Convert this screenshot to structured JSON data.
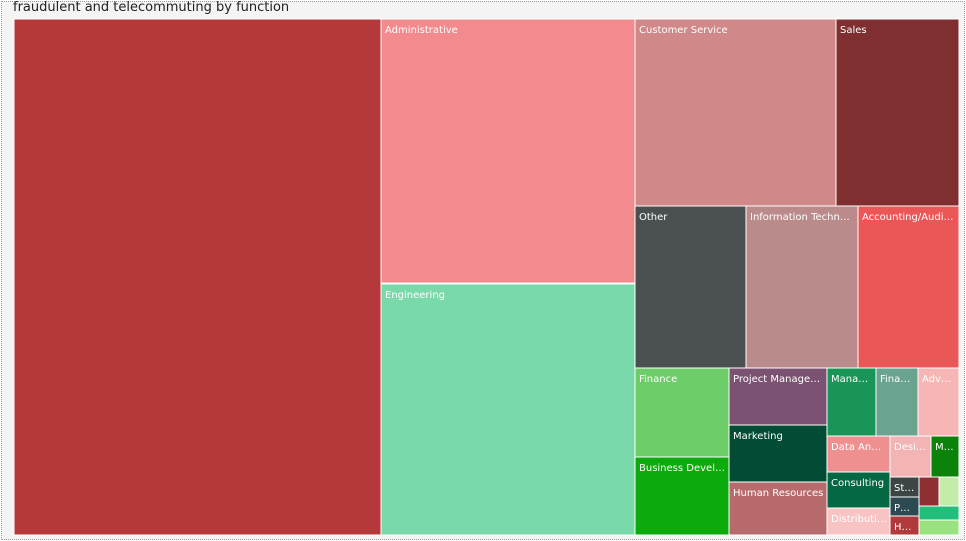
{
  "chart_data": {
    "type": "treemap",
    "title": "fraudulent and telecommuting by function",
    "items": [
      {
        "label": "",
        "value": 3950,
        "color": "#b5393a",
        "text": "#ffffff"
      },
      {
        "label": "Administrative",
        "value": 1343,
        "color": "#f28a8e",
        "text": "#ffffff"
      },
      {
        "label": "Engineering",
        "value": 1264,
        "color": "#79d9aa",
        "text": "#ffffff"
      },
      {
        "label": "Customer Service",
        "value": 805,
        "color": "#d08888",
        "text": "#ffffff"
      },
      {
        "label": "Sales",
        "value": 612,
        "color": "#7f2f30",
        "text": "#ffffff"
      },
      {
        "label": "Other",
        "value": 362,
        "color": "#4a5052",
        "text": "#ffffff"
      },
      {
        "label": "Information Technology",
        "value": 362,
        "color": "#bb8a8b",
        "text": "#ffffff"
      },
      {
        "label": "Accounting/Auditing",
        "value": 325,
        "color": "#eb5657",
        "text": "#ffffff"
      },
      {
        "label": "Finance",
        "value": 182,
        "color": "#6dcd68",
        "text": "#ffffff"
      },
      {
        "label": "Business Development",
        "value": 175,
        "color": "#0caa0c",
        "text": "#ffffff"
      },
      {
        "label": "Project Management",
        "value": 116,
        "color": "#7c5272",
        "text": "#ffffff"
      },
      {
        "label": "Marketing",
        "value": 120,
        "color": "#024b34",
        "text": "#ffffff"
      },
      {
        "label": "Human Resources",
        "value": 101,
        "color": "#b86b6d",
        "text": "#ffffff"
      },
      {
        "label": "Management",
        "value": 73,
        "color": "#1a9558",
        "text": "#ffffff"
      },
      {
        "label": "Financial Analyst",
        "value": 66,
        "color": "#6aa38f",
        "text": "#ffffff"
      },
      {
        "label": "Advertising",
        "value": 58,
        "color": "#f7b6b5",
        "text": "#ffffff"
      },
      {
        "label": "Data Analyst",
        "value": 40,
        "color": "#ee9090",
        "text": "#ffffff"
      },
      {
        "label": "Consulting",
        "value": 37,
        "color": "#046843",
        "text": "#ffffff"
      },
      {
        "label": "Distribution",
        "value": 28,
        "color": "#f8c3c3",
        "text": "#ffffff"
      },
      {
        "label": "Design",
        "value": 27,
        "color": "#f3b4b4",
        "text": "#ffffff"
      },
      {
        "label": "Manufacturing",
        "value": 26,
        "color": "#0b830b",
        "text": "#ffffff"
      },
      {
        "label": "Strategy",
        "value": 14,
        "color": "#3d4544",
        "text": "#ffffff"
      },
      {
        "label": "Public Relations",
        "value": 11,
        "color": "#2d4a52",
        "text": "#ffffff"
      },
      {
        "label": "Health Care",
        "value": 11,
        "color": "#b2393b",
        "text": "#ffffff"
      },
      {
        "label": "",
        "value": 15,
        "color": "#8e2f33",
        "text": "#ffffff"
      },
      {
        "label": "",
        "value": 11,
        "color": "#c3ebaa",
        "text": "#ffffff"
      },
      {
        "label": "",
        "value": 6,
        "color": "#22be7c",
        "text": "#ffffff"
      },
      {
        "label": "",
        "value": 7,
        "color": "#9ae27f",
        "text": "#ffffff"
      }
    ]
  }
}
